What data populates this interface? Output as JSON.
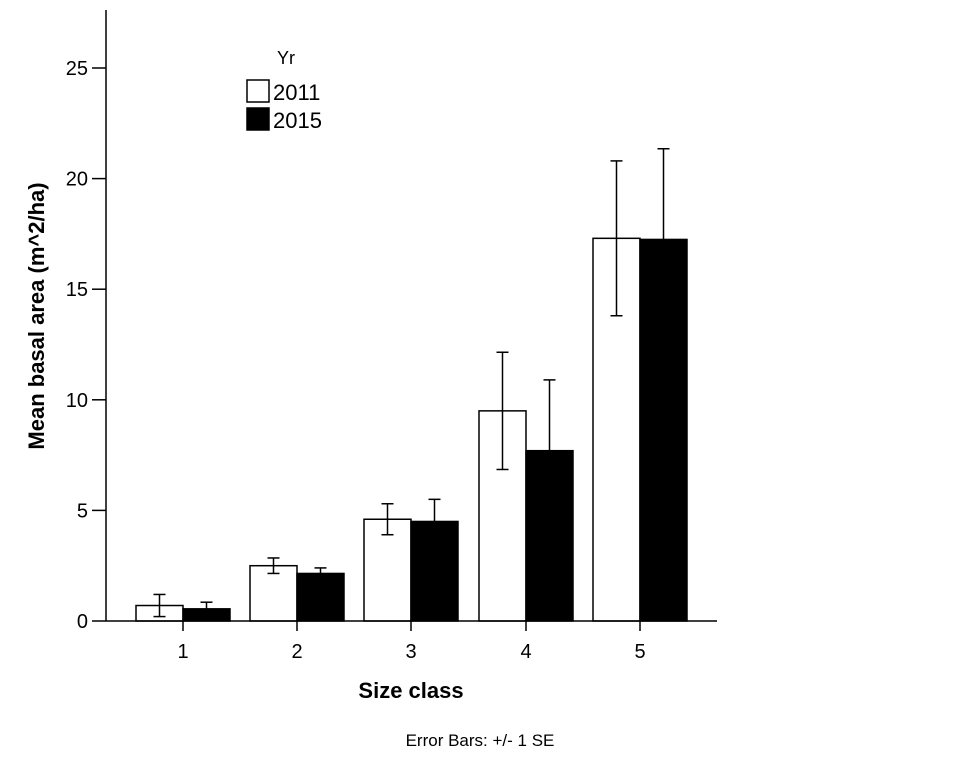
{
  "chart_data": {
    "type": "bar",
    "title": "",
    "xlabel": "Size class",
    "ylabel": "Mean basal area (m^2/ha)",
    "categories": [
      "1",
      "2",
      "3",
      "4",
      "5"
    ],
    "ylim": [
      0,
      25
    ],
    "yticks": [
      0,
      5,
      10,
      15,
      20,
      25
    ],
    "grid": false,
    "legend": {
      "title": "Yr",
      "placement": "top-left"
    },
    "series": [
      {
        "name": "2011",
        "color": "#ffffff",
        "values": [
          0.7,
          2.5,
          4.6,
          9.5,
          17.3
        ],
        "error": [
          0.5,
          0.35,
          0.7,
          2.65,
          3.5
        ]
      },
      {
        "name": "2015",
        "color": "#000000",
        "values": [
          0.55,
          2.15,
          4.5,
          7.7,
          17.25
        ],
        "error": [
          0.3,
          0.25,
          1.0,
          3.2,
          4.1
        ]
      }
    ],
    "footnote": "Error Bars: +/- 1 SE"
  }
}
